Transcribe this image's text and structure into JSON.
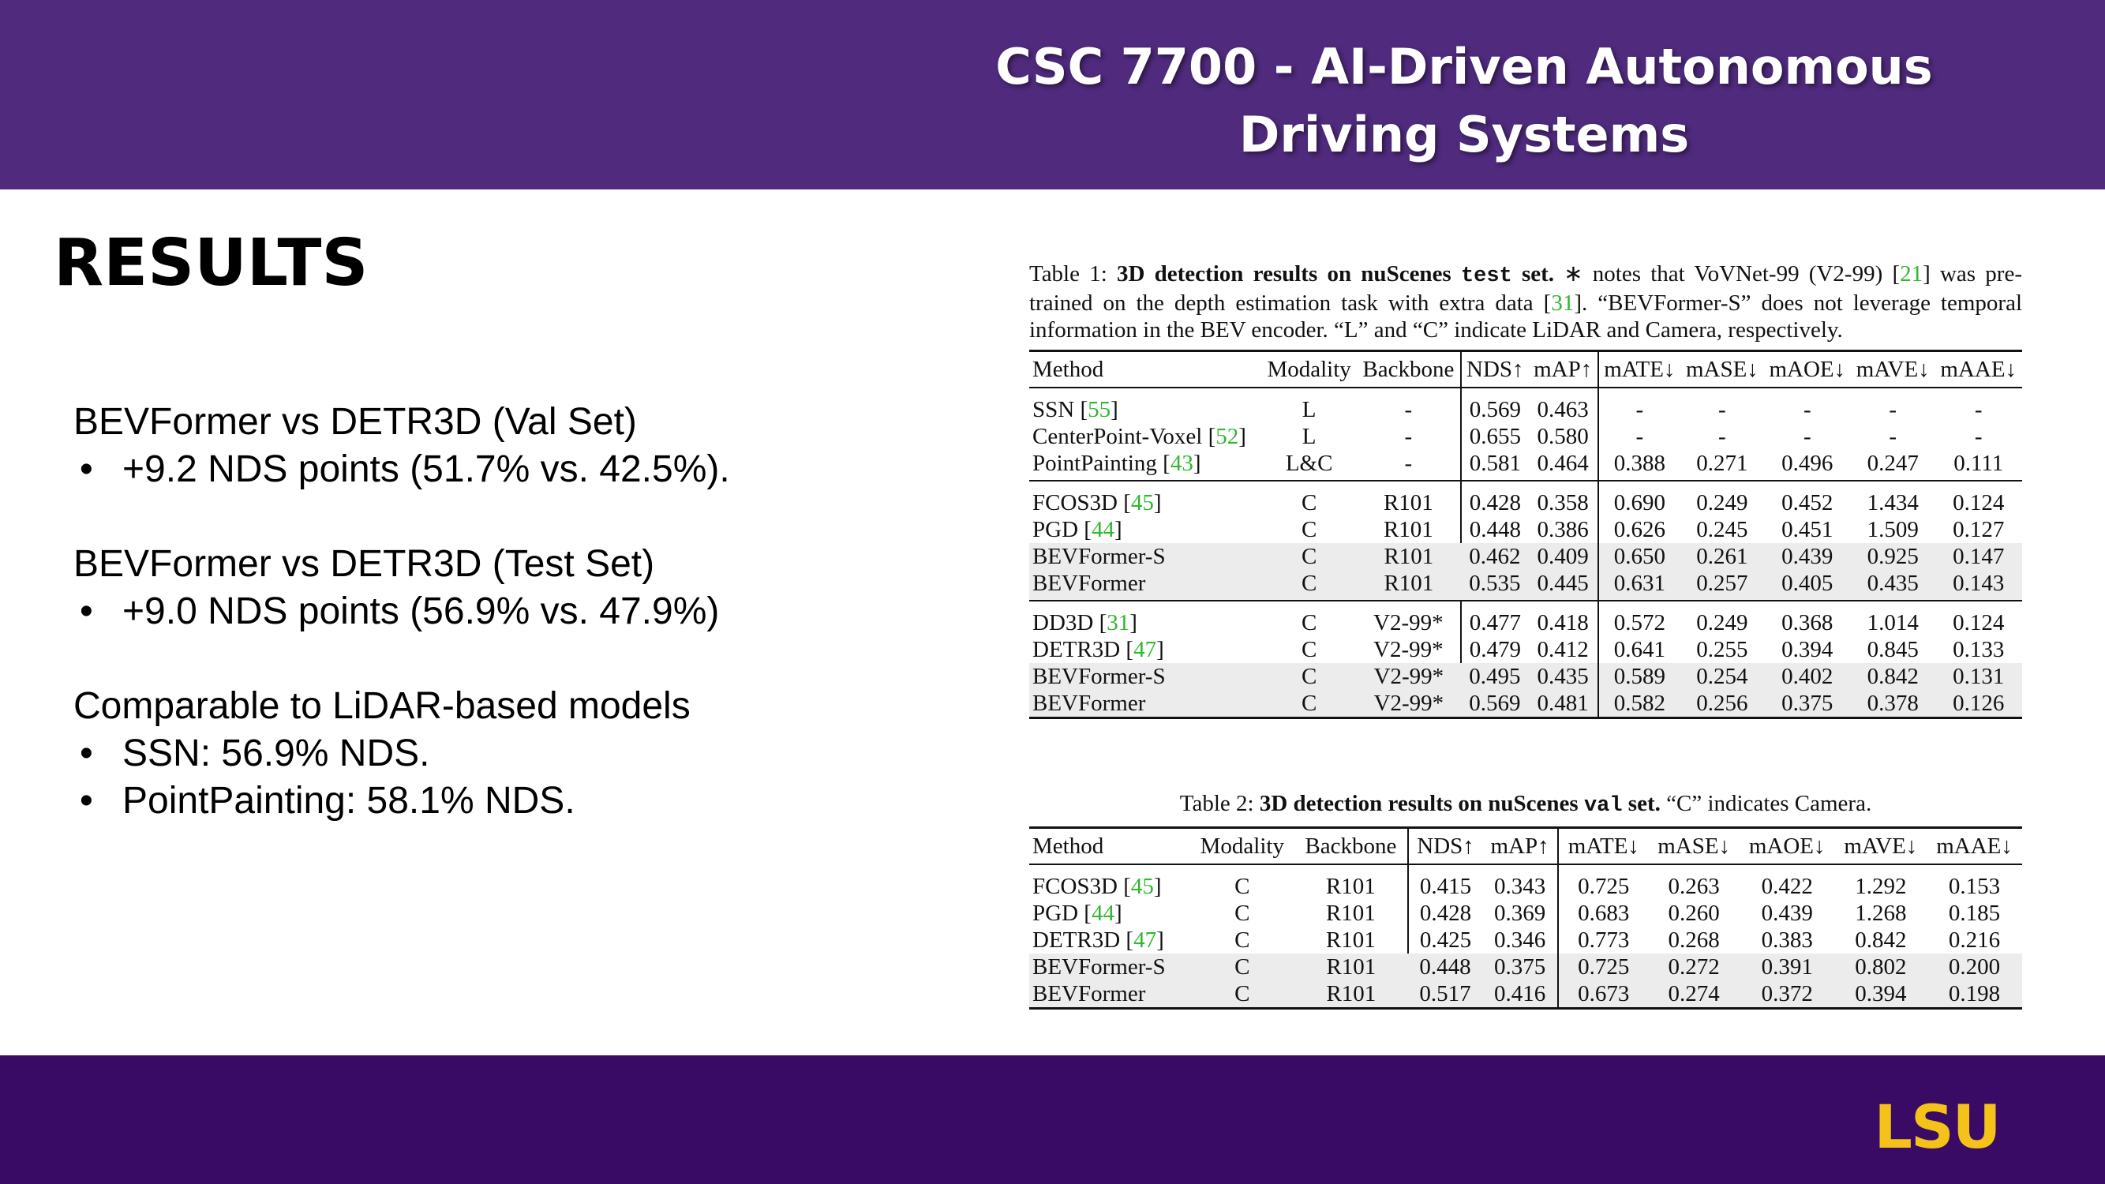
{
  "header": {
    "line1": "CSC 7700 - AI-Driven Autonomous",
    "line2": "Driving Systems"
  },
  "section_title": "RESULTS",
  "bullet_blocks": [
    {
      "heading": "BEVFormer vs DETR3D (Val Set)",
      "items": [
        "+9.2 NDS points (51.7% vs. 42.5%)."
      ]
    },
    {
      "heading": "BEVFormer vs DETR3D (Test Set)",
      "items": [
        "+9.0 NDS points (56.9% vs. 47.9%)"
      ]
    },
    {
      "heading": "Comparable to LiDAR-based models",
      "items": [
        "SSN: 56.9% NDS.",
        "PointPainting: 58.1% NDS."
      ]
    }
  ],
  "table1": {
    "caption_prefix": "Table 1: ",
    "caption_bold": "3D detection results on nuScenes ",
    "caption_mono": "test",
    "caption_bold2": " set.",
    "caption_rest_a": " ∗ notes that VoVNet-99 (V2-99) [",
    "caption_cite_a": "21",
    "caption_rest_b": "] was pre-trained on the depth estimation task with extra data [",
    "caption_cite_b": "31",
    "caption_rest_c": "]. “BEVFormer-S” does not leverage temporal information in the BEV encoder. “L” and “C” indicate LiDAR and Camera, respectively.",
    "headers": [
      "Method",
      "Modality",
      "Backbone",
      "NDS↑",
      "mAP↑",
      "mATE↓",
      "mASE↓",
      "mAOE↓",
      "mAVE↓",
      "mAAE↓"
    ],
    "rows": [
      {
        "method": "SSN ",
        "cite": "55",
        "modality": "L",
        "backbone": "-",
        "nds": "0.569",
        "map": "0.463",
        "mate": "-",
        "mase": "-",
        "maoe": "-",
        "mave": "-",
        "maae": "-"
      },
      {
        "method": "CenterPoint-Voxel ",
        "cite": "52",
        "modality": "L",
        "backbone": "-",
        "nds": "0.655",
        "map": "0.580",
        "mate": "-",
        "mase": "-",
        "maoe": "-",
        "mave": "-",
        "maae": "-"
      },
      {
        "method": "PointPainting ",
        "cite": "43",
        "modality": "L&C",
        "backbone": "-",
        "nds": "0.581",
        "map": "0.464",
        "mate": "0.388",
        "mase": "0.271",
        "maoe": "0.496",
        "mave": "0.247",
        "maae": "0.111"
      },
      {
        "method": "FCOS3D ",
        "cite": "45",
        "modality": "C",
        "backbone": "R101",
        "nds": "0.428",
        "map": "0.358",
        "mate": "0.690",
        "mase": "0.249",
        "maoe": "0.452",
        "mave": "1.434",
        "maae": "0.124"
      },
      {
        "method": "PGD ",
        "cite": "44",
        "modality": "C",
        "backbone": "R101",
        "nds": "0.448",
        "map": "0.386",
        "mate": "0.626",
        "mase": "0.245",
        "maoe": "0.451",
        "mave": "1.509",
        "maae": "0.127"
      },
      {
        "method": "BEVFormer-S",
        "cite": "",
        "modality": "C",
        "backbone": "R101",
        "nds": "0.462",
        "map": "0.409",
        "mate": "0.650",
        "mase": "0.261",
        "maoe": "0.439",
        "mave": "0.925",
        "maae": "0.147"
      },
      {
        "method": "BEVFormer",
        "cite": "",
        "modality": "C",
        "backbone": "R101",
        "nds": "0.535",
        "map": "0.445",
        "mate": "0.631",
        "mase": "0.257",
        "maoe": "0.405",
        "mave": "0.435",
        "maae": "0.143"
      },
      {
        "method": "DD3D ",
        "cite": "31",
        "modality": "C",
        "backbone": "V2-99*",
        "nds": "0.477",
        "map": "0.418",
        "mate": "0.572",
        "mase": "0.249",
        "maoe": "0.368",
        "mave": "1.014",
        "maae": "0.124"
      },
      {
        "method": "DETR3D ",
        "cite": "47",
        "modality": "C",
        "backbone": "V2-99*",
        "nds": "0.479",
        "map": "0.412",
        "mate": "0.641",
        "mase": "0.255",
        "maoe": "0.394",
        "mave": "0.845",
        "maae": "0.133"
      },
      {
        "method": "BEVFormer-S",
        "cite": "",
        "modality": "C",
        "backbone": "V2-99*",
        "nds": "0.495",
        "map": "0.435",
        "mate": "0.589",
        "mase": "0.254",
        "maoe": "0.402",
        "mave": "0.842",
        "maae": "0.131"
      },
      {
        "method": "BEVFormer",
        "cite": "",
        "modality": "C",
        "backbone": "V2-99*",
        "nds": "0.569",
        "map": "0.481",
        "mate": "0.582",
        "mase": "0.256",
        "maoe": "0.375",
        "mave": "0.378",
        "maae": "0.126"
      }
    ]
  },
  "table2": {
    "caption_prefix": "Table 2: ",
    "caption_bold": "3D detection results on nuScenes ",
    "caption_mono": "val",
    "caption_bold2": " set.",
    "caption_rest": " “C” indicates Camera.",
    "headers": [
      "Method",
      "Modality",
      "Backbone",
      "NDS↑",
      "mAP↑",
      "mATE↓",
      "mASE↓",
      "mAOE↓",
      "mAVE↓",
      "mAAE↓"
    ],
    "rows": [
      {
        "method": "FCOS3D ",
        "cite": "45",
        "modality": "C",
        "backbone": "R101",
        "nds": "0.415",
        "map": "0.343",
        "mate": "0.725",
        "mase": "0.263",
        "maoe": "0.422",
        "mave": "1.292",
        "maae": "0.153"
      },
      {
        "method": "PGD ",
        "cite": "44",
        "modality": "C",
        "backbone": "R101",
        "nds": "0.428",
        "map": "0.369",
        "mate": "0.683",
        "mase": "0.260",
        "maoe": "0.439",
        "mave": "1.268",
        "maae": "0.185"
      },
      {
        "method": "DETR3D ",
        "cite": "47",
        "modality": "C",
        "backbone": "R101",
        "nds": "0.425",
        "map": "0.346",
        "mate": "0.773",
        "mase": "0.268",
        "maoe": "0.383",
        "mave": "0.842",
        "maae": "0.216"
      },
      {
        "method": "BEVFormer-S",
        "cite": "",
        "modality": "C",
        "backbone": "R101",
        "nds": "0.448",
        "map": "0.375",
        "mate": "0.725",
        "mase": "0.272",
        "maoe": "0.391",
        "mave": "0.802",
        "maae": "0.200"
      },
      {
        "method": "BEVFormer",
        "cite": "",
        "modality": "C",
        "backbone": "R101",
        "nds": "0.517",
        "map": "0.416",
        "mate": "0.673",
        "mase": "0.274",
        "maoe": "0.372",
        "mave": "0.394",
        "maae": "0.198"
      }
    ]
  },
  "logo": {
    "text": "LSU",
    "color": "#f5c21a"
  }
}
